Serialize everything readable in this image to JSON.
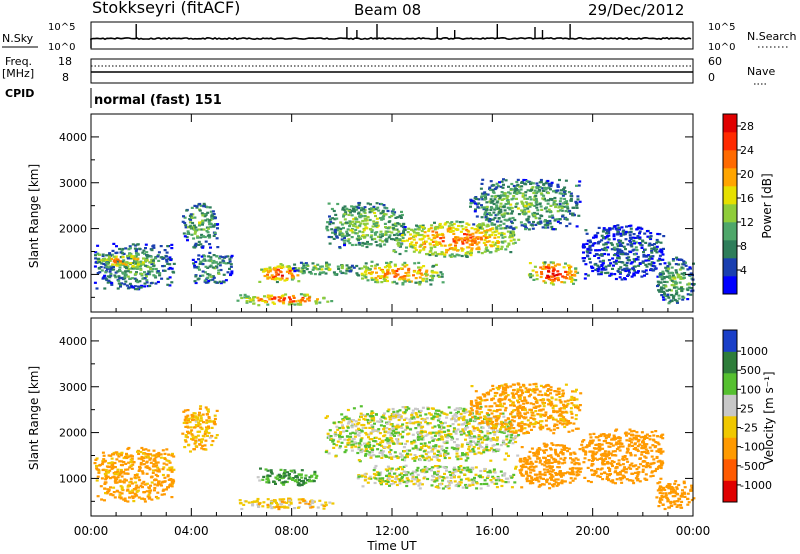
{
  "header": {
    "station": "Stokkseyri (fitACF)",
    "beam": "Beam 08",
    "date": "29/Dec/2012"
  },
  "top_panels": {
    "nsky_label": "N.Sky",
    "nsky_ticks": [
      "10^5",
      "10^0"
    ],
    "nsearch_label": "N.Search",
    "nsearch_ticks": [
      "10^5",
      "10^0"
    ],
    "freq_label": "Freq.",
    "freq_unit": "[MHz]",
    "freq_ticks": [
      "18",
      "8"
    ],
    "nave_label": "Nave",
    "nave_ticks": [
      "60",
      "0"
    ],
    "cpid_label": "CPID",
    "cpid_text": "normal (fast) 151"
  },
  "x_axis": {
    "label": "Time UT",
    "ticks": [
      "00:00",
      "04:00",
      "08:00",
      "12:00",
      "16:00",
      "20:00",
      "00:00"
    ]
  },
  "panel_power": {
    "ylabel": "Slant Range [km]",
    "yticks": [
      "1000",
      "2000",
      "3000",
      "4000"
    ],
    "colorbar_label": "Power [dB]",
    "colorbar_ticks": [
      "28",
      "24",
      "20",
      "16",
      "12",
      "8",
      "4"
    ],
    "colors": [
      "#0000ff",
      "#1a3fb0",
      "#2e7d5a",
      "#4fa76a",
      "#8fcd3a",
      "#e6e000",
      "#ffa500",
      "#ff6a00",
      "#ff2a00",
      "#e00000"
    ]
  },
  "panel_velocity": {
    "ylabel": "Slant Range [km]",
    "yticks": [
      "1000",
      "2000",
      "3000",
      "4000"
    ],
    "colorbar_label": "Velocity [m s⁻¹]",
    "colorbar_ticks": [
      "1000",
      "500",
      "100",
      "25",
      "-25",
      "-100",
      "-500",
      "-1000"
    ],
    "colors": [
      "#1a3fc8",
      "#2e7d3a",
      "#56c030",
      "#c8c8c8",
      "#f0c800",
      "#ff9a00",
      "#ff5a00",
      "#e00000"
    ]
  },
  "chart_data": [
    {
      "type": "heatmap",
      "title": "Power",
      "xlabel": "Time UT",
      "ylabel": "Slant Range [km]",
      "xlim": [
        0,
        24
      ],
      "ylim": [
        180,
        4500
      ],
      "colorbar": "Power [dB]",
      "clim": [
        0,
        30
      ],
      "blobs": [
        {
          "t": [
            0.1,
            3.3
          ],
          "r": [
            700,
            1700
          ],
          "power": 10
        },
        {
          "t": [
            0.2,
            2.5
          ],
          "r": [
            1150,
            1500
          ],
          "power": 20
        },
        {
          "t": [
            3.6,
            5.0
          ],
          "r": [
            1600,
            2600
          ],
          "power": 12
        },
        {
          "t": [
            4.0,
            5.6
          ],
          "r": [
            800,
            1500
          ],
          "power": 10
        },
        {
          "t": [
            5.8,
            9.6
          ],
          "r": [
            350,
            600
          ],
          "power": 24
        },
        {
          "t": [
            6.6,
            8.4
          ],
          "r": [
            850,
            1250
          ],
          "power": 25
        },
        {
          "t": [
            8.0,
            10.5
          ],
          "r": [
            1000,
            1300
          ],
          "power": 14
        },
        {
          "t": [
            9.3,
            12.5
          ],
          "r": [
            1600,
            2600
          ],
          "power": 14
        },
        {
          "t": [
            10.5,
            14.0
          ],
          "r": [
            800,
            1300
          ],
          "power": 22
        },
        {
          "t": [
            12.0,
            17.0
          ],
          "r": [
            1400,
            2200
          ],
          "power": 22
        },
        {
          "t": [
            15.0,
            19.5
          ],
          "r": [
            2000,
            3100
          ],
          "power": 12
        },
        {
          "t": [
            17.4,
            19.4
          ],
          "r": [
            800,
            1300
          ],
          "power": 27
        },
        {
          "t": [
            19.5,
            22.8
          ],
          "r": [
            900,
            2100
          ],
          "power": 6
        },
        {
          "t": [
            22.5,
            24.0
          ],
          "r": [
            350,
            1400
          ],
          "power": 12
        }
      ]
    },
    {
      "type": "heatmap",
      "title": "Velocity",
      "xlabel": "Time UT",
      "ylabel": "Slant Range [km]",
      "xlim": [
        0,
        24
      ],
      "ylim": [
        180,
        4500
      ],
      "colorbar": "Velocity [m s⁻¹]",
      "clim": [
        -1000,
        1000
      ],
      "blobs": [
        {
          "t": [
            0.1,
            3.3
          ],
          "r": [
            500,
            1700
          ],
          "velocity": -150
        },
        {
          "t": [
            3.6,
            5.0
          ],
          "r": [
            1600,
            2600
          ],
          "velocity": -100
        },
        {
          "t": [
            5.8,
            9.6
          ],
          "r": [
            350,
            600
          ],
          "velocity": -50
        },
        {
          "t": [
            6.6,
            9.0
          ],
          "r": [
            850,
            1250
          ],
          "velocity": 100
        },
        {
          "t": [
            9.3,
            17.0
          ],
          "r": [
            1400,
            2600
          ],
          "velocity": 0
        },
        {
          "t": [
            10.5,
            17.0
          ],
          "r": [
            800,
            1300
          ],
          "velocity": 0
        },
        {
          "t": [
            15.0,
            19.5
          ],
          "r": [
            2000,
            3100
          ],
          "velocity": -150
        },
        {
          "t": [
            17.0,
            19.5
          ],
          "r": [
            800,
            1800
          ],
          "velocity": -250
        },
        {
          "t": [
            19.5,
            22.8
          ],
          "r": [
            900,
            2100
          ],
          "velocity": -300
        },
        {
          "t": [
            22.5,
            24.0
          ],
          "r": [
            350,
            1000
          ],
          "velocity": -200
        }
      ]
    }
  ]
}
